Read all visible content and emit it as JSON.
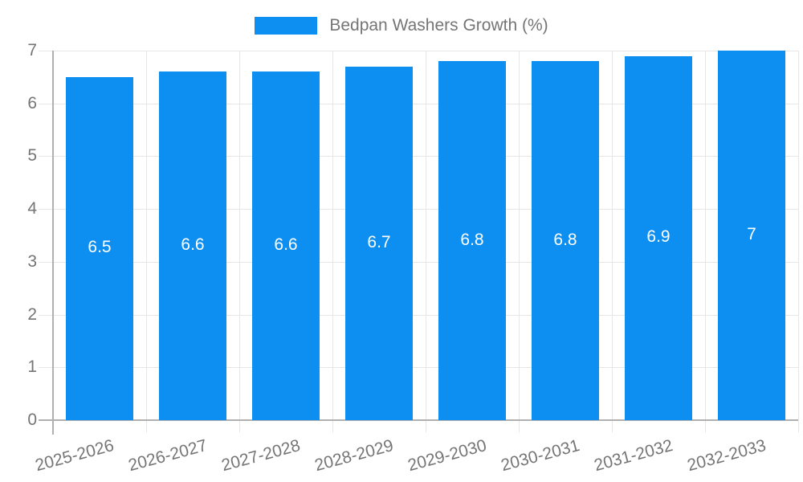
{
  "legend": {
    "label": "Bedpan Washers Growth (%)"
  },
  "chart_data": {
    "type": "bar",
    "title": "Bedpan Washers Growth (%)",
    "categories": [
      "2025-2026",
      "2026-2027",
      "2027-2028",
      "2028-2029",
      "2029-2030",
      "2030-2031",
      "2031-2032",
      "2032-2033"
    ],
    "values": [
      6.5,
      6.6,
      6.6,
      6.7,
      6.8,
      6.8,
      6.9,
      7
    ],
    "value_labels": [
      "6.5",
      "6.6",
      "6.6",
      "6.7",
      "6.8",
      "6.8",
      "6.9",
      "7"
    ],
    "xlabel": "",
    "ylabel": "",
    "ylim": [
      0,
      7
    ],
    "yticks": [
      0,
      1,
      2,
      3,
      4,
      5,
      6,
      7
    ],
    "ytick_labels": [
      "0",
      "1",
      "2",
      "3",
      "4",
      "5",
      "6",
      "7"
    ],
    "grid": true,
    "legend_position": "top",
    "colors": {
      "bar": "#0d8ff2",
      "text": "#757575",
      "value_text": "#ffffff",
      "gridline": "#e6e6e6",
      "axis": "#b0b0b0",
      "background": "#ffffff"
    }
  }
}
